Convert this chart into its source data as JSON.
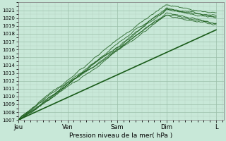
{
  "title": "Pression niveau de la mer( hPa )",
  "background_color": "#c8e8d8",
  "plot_bg_color": "#c8e8d8",
  "grid_major_color": "#9bbfaa",
  "grid_minor_color": "#b5d4c2",
  "ylim": [
    1007,
    1022
  ],
  "yticks": [
    1007,
    1008,
    1009,
    1010,
    1011,
    1012,
    1013,
    1014,
    1015,
    1016,
    1017,
    1018,
    1019,
    1020,
    1021
  ],
  "xtick_labels": [
    "Jeu",
    "Ven",
    "Sam",
    "Dim",
    "L"
  ],
  "line_color": "#1a5c1a",
  "num_points": 400
}
